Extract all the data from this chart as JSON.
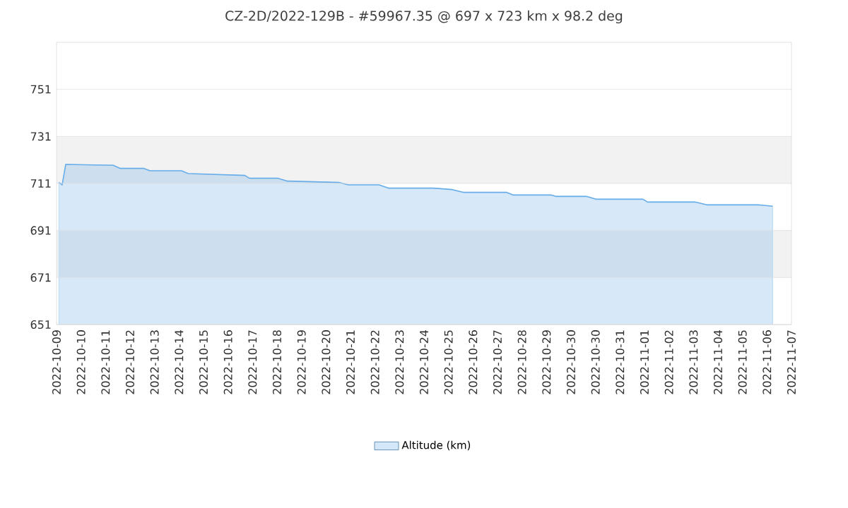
{
  "chart_data": {
    "type": "area",
    "title": "CZ-2D/2022-129B - #59967.35 @ 697 x 723 km x 98.2 deg",
    "x": [
      "2022-10-09T02:24",
      "2022-10-09T05:30",
      "2022-10-09T09:00",
      "2022-10-11T07:30",
      "2022-10-11T14:24",
      "2022-10-12T13:30",
      "2022-10-12T19:30",
      "2022-10-14T02:24",
      "2022-10-14T09:00",
      "2022-10-16T16:30",
      "2022-10-16T21:00",
      "2022-10-18T01:00",
      "2022-10-18T10:00",
      "2022-10-20T13:00",
      "2022-10-20T22:00",
      "2022-10-22T04:00",
      "2022-10-22T13:30",
      "2022-10-24T09:00",
      "2022-10-25T03:30",
      "2022-10-25T15:00",
      "2022-10-27T09:00",
      "2022-10-27T15:00",
      "2022-10-29T04:30",
      "2022-10-29T09:00",
      "2022-10-30T15:00",
      "2022-10-31T00:30",
      "2022-11-01T22:30",
      "2022-11-02T03:00",
      "2022-11-04T01:30",
      "2022-11-04T13:00",
      "2022-11-06T15:30",
      "2022-11-07T05:30"
    ],
    "series": [
      {
        "name": "Altitude (km)",
        "color": "#6aaee9",
        "values": [
          711.4,
          710.4,
          719.1,
          718.7,
          717.4,
          717.4,
          716.4,
          716.4,
          715.2,
          714.4,
          713.2,
          713.2,
          712.0,
          711.4,
          710.4,
          710.4,
          709.0,
          709.0,
          708.4,
          707.2,
          707.2,
          706.1,
          706.1,
          705.5,
          705.5,
          704.3,
          704.3,
          703.1,
          703.1,
          701.9,
          701.9,
          701.3
        ]
      }
    ],
    "xlim": [
      "2022-10-09T00:00",
      "2022-11-08T00:00"
    ],
    "xticks": [
      {
        "value": "2022-10-09",
        "label": "2022-10-09"
      },
      {
        "value": "2022-10-10",
        "label": "2022-10-10"
      },
      {
        "value": "2022-10-11",
        "label": "2022-10-11"
      },
      {
        "value": "2022-10-12",
        "label": "2022-10-12"
      },
      {
        "value": "2022-10-13",
        "label": "2022-10-13"
      },
      {
        "value": "2022-10-14",
        "label": "2022-10-14"
      },
      {
        "value": "2022-10-15",
        "label": "2022-10-15"
      },
      {
        "value": "2022-10-16",
        "label": "2022-10-16"
      },
      {
        "value": "2022-10-17",
        "label": "2022-10-17"
      },
      {
        "value": "2022-10-18",
        "label": "2022-10-18"
      },
      {
        "value": "2022-10-19",
        "label": "2022-10-19"
      },
      {
        "value": "2022-10-20",
        "label": "2022-10-20"
      },
      {
        "value": "2022-10-21",
        "label": "2022-10-21"
      },
      {
        "value": "2022-10-22",
        "label": "2022-10-22"
      },
      {
        "value": "2022-10-23",
        "label": "2022-10-23"
      },
      {
        "value": "2022-10-24",
        "label": "2022-10-24"
      },
      {
        "value": "2022-10-25",
        "label": "2022-10-25"
      },
      {
        "value": "2022-10-26",
        "label": "2022-10-26"
      },
      {
        "value": "2022-10-27",
        "label": "2022-10-27"
      },
      {
        "value": "2022-10-28",
        "label": "2022-10-28"
      },
      {
        "value": "2022-10-29",
        "label": "2022-10-29"
      },
      {
        "value": "2022-10-30",
        "label": "2022-10-30"
      },
      {
        "value": "2022-10-31",
        "label": "2022-10-30"
      },
      {
        "value": "2022-11-01",
        "label": "2022-10-31"
      },
      {
        "value": "2022-11-02",
        "label": "2022-11-01"
      },
      {
        "value": "2022-11-03",
        "label": "2022-11-02"
      },
      {
        "value": "2022-11-04",
        "label": "2022-11-03"
      },
      {
        "value": "2022-11-05",
        "label": "2022-11-04"
      },
      {
        "value": "2022-11-06",
        "label": "2022-11-05"
      },
      {
        "value": "2022-11-07",
        "label": "2022-11-06"
      },
      {
        "value": "2022-11-08",
        "label": "2022-11-07"
      }
    ],
    "ylim": [
      651,
      771
    ],
    "yticks": [
      651,
      671,
      691,
      711,
      731,
      751
    ],
    "bands": [
      {
        "axis": "y",
        "from": 711,
        "to": 731,
        "color": "#f2f2f2"
      },
      {
        "axis": "y",
        "from": 671,
        "to": 691,
        "color": "#f2f2f2"
      }
    ],
    "grid": "y",
    "legend": "bottom"
  }
}
